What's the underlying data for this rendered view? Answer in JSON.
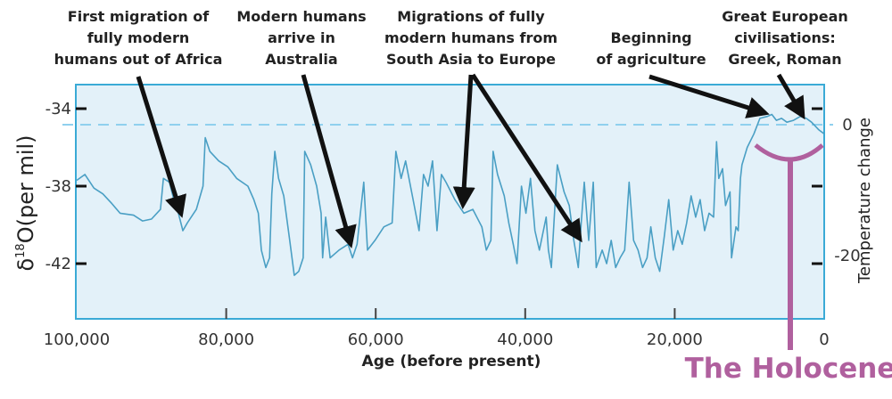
{
  "chart_data": {
    "type": "line",
    "xlabel": "Age (before present)",
    "ylabel_prefix": "δ",
    "ylabel_sup": "18",
    "ylabel_rest": "O(per mil)",
    "y2label": "Temperature change",
    "xlim": [
      100000,
      0
    ],
    "ylim": [
      -44.8,
      -32.8
    ],
    "x_ticks": [
      {
        "value": 100000,
        "label": "100,000"
      },
      {
        "value": 80000,
        "label": "80,000"
      },
      {
        "value": 60000,
        "label": "60,000"
      },
      {
        "value": 40000,
        "label": "40,000"
      },
      {
        "value": 20000,
        "label": "20,000"
      },
      {
        "value": 0,
        "label": "0"
      }
    ],
    "y_ticks": [
      {
        "value": -34,
        "label": "-34"
      },
      {
        "value": -38,
        "label": "-38"
      },
      {
        "value": -42,
        "label": "-42"
      }
    ],
    "y2_ticks": [
      {
        "value": 0,
        "label": "0"
      },
      {
        "value": -20,
        "label": "-20"
      }
    ],
    "reference_line": {
      "y": -34.83,
      "y2": 0,
      "style": "dashed"
    },
    "colors": {
      "line": "#4a9fc4",
      "plot_bg": "#e3f1f9",
      "border": "#3aaad6",
      "reference": "#8fd0ee",
      "holocene": "#b0609e",
      "arrow": "#111111"
    },
    "grid": false,
    "series": [
      {
        "x": [
          100000,
          98900,
          97700,
          96500,
          95300,
          94200,
          92400,
          91200,
          90000,
          88800,
          88400,
          87600,
          87000,
          86400,
          85800,
          85200,
          84000,
          83100,
          82800,
          82200,
          81000,
          79800,
          78600,
          77100,
          76300,
          75700,
          75300,
          74700,
          74200,
          73900,
          73500,
          73000,
          72300,
          71500,
          70900,
          70300,
          69700,
          69500,
          68700,
          67900,
          67300,
          67100,
          66700,
          66100,
          64900,
          63700,
          63100,
          62500,
          61600,
          61100,
          60100,
          58900,
          57800,
          57300,
          56600,
          56000,
          55100,
          54200,
          53600,
          53000,
          52400,
          51800,
          51200,
          50600,
          49400,
          48200,
          47000,
          45800,
          45200,
          44600,
          44300,
          43700,
          42800,
          42200,
          41600,
          41100,
          40500,
          39900,
          39300,
          38700,
          38100,
          37200,
          36900,
          36500,
          35700,
          34800,
          34100,
          33500,
          32900,
          32500,
          32100,
          31500,
          30900,
          30500,
          29700,
          29100,
          28500,
          27900,
          27300,
          26700,
          26100,
          25500,
          24900,
          24300,
          23700,
          23200,
          22600,
          22000,
          21400,
          20800,
          20200,
          19600,
          19000,
          18400,
          17800,
          17200,
          16600,
          16000,
          15400,
          14800,
          14400,
          14100,
          13600,
          13200,
          12600,
          12400,
          11800,
          11500,
          11200,
          11000,
          10300,
          9400,
          8600,
          7600,
          7000,
          6400,
          5700,
          5000,
          4100,
          3200,
          2400,
          1700,
          700,
          0
        ],
        "y": [
          -37.7,
          -37.4,
          -38.1,
          -38.4,
          -38.9,
          -39.4,
          -39.5,
          -39.8,
          -39.7,
          -39.2,
          -37.6,
          -37.8,
          -38.7,
          -39.4,
          -40.3,
          -39.9,
          -39.2,
          -38.0,
          -35.5,
          -36.2,
          -36.7,
          -37.0,
          -37.6,
          -38.0,
          -38.7,
          -39.4,
          -41.3,
          -42.2,
          -41.7,
          -38.4,
          -36.2,
          -37.6,
          -38.5,
          -40.8,
          -42.6,
          -42.4,
          -41.7,
          -36.2,
          -36.9,
          -38.0,
          -39.4,
          -41.7,
          -39.6,
          -41.7,
          -41.3,
          -41.0,
          -41.7,
          -41.0,
          -37.8,
          -41.3,
          -40.8,
          -40.1,
          -39.9,
          -36.2,
          -37.6,
          -36.7,
          -38.5,
          -40.3,
          -37.4,
          -38.0,
          -36.7,
          -40.3,
          -37.4,
          -37.8,
          -38.7,
          -39.4,
          -39.2,
          -40.1,
          -41.3,
          -40.8,
          -36.2,
          -37.4,
          -38.5,
          -39.9,
          -41.0,
          -42.0,
          -38.0,
          -39.4,
          -37.6,
          -40.3,
          -41.3,
          -39.6,
          -41.3,
          -42.2,
          -36.9,
          -38.3,
          -39.0,
          -40.8,
          -42.2,
          -39.9,
          -37.8,
          -40.8,
          -37.8,
          -42.2,
          -41.3,
          -42.0,
          -40.8,
          -42.2,
          -41.7,
          -41.3,
          -37.8,
          -40.8,
          -41.3,
          -42.2,
          -41.7,
          -40.1,
          -41.7,
          -42.4,
          -40.6,
          -38.7,
          -41.3,
          -40.3,
          -41.0,
          -39.9,
          -38.5,
          -39.6,
          -38.7,
          -40.3,
          -39.4,
          -39.6,
          -35.7,
          -37.6,
          -37.1,
          -39.0,
          -38.3,
          -41.7,
          -40.1,
          -40.3,
          -37.6,
          -36.9,
          -36.0,
          -35.3,
          -34.5,
          -34.4,
          -34.3,
          -34.6,
          -34.5,
          -34.7,
          -34.6,
          -34.4,
          -34.5,
          -34.7,
          -35.1,
          -35.3
        ]
      }
    ],
    "annotations": [
      {
        "lines": [
          "First migration of",
          "fully modern",
          "humans out of Africa"
        ]
      },
      {
        "lines": [
          "Modern humans",
          "arrive in",
          "Australia"
        ]
      },
      {
        "lines": [
          "Migrations of fully",
          "modern humans from",
          "South Asia to Europe"
        ]
      },
      {
        "lines": [
          "Beginning",
          "of agriculture"
        ]
      },
      {
        "lines": [
          "Great European",
          "civilisations:",
          "Greek, Roman"
        ]
      }
    ],
    "holocene_label": "The Holocene"
  }
}
